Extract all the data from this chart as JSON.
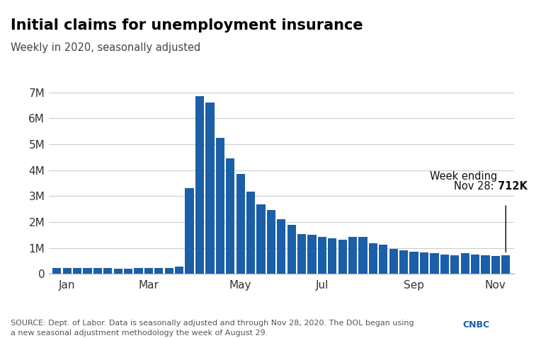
{
  "title": "Initial claims for unemployment insurance",
  "subtitle": "Weekly in 2020, seasonally adjusted",
  "source_text": "SOURCE: Dept. of Labor. Data is seasonally adjusted and through Nov 28, 2020. The DOL began using\na new seasonal adjustment methodology the week of August 29.",
  "annotation_line1": "Week ending",
  "annotation_line2": "Nov 28: ",
  "annotation_bold": "712K",
  "bar_color": "#1a5fa8",
  "background_color": "#ffffff",
  "header_color": "#0d2c6e",
  "ytick_labels": [
    "0",
    "1M",
    "2M",
    "3M",
    "4M",
    "5M",
    "6M",
    "7M"
  ],
  "ytick_values": [
    0,
    1000000,
    2000000,
    3000000,
    4000000,
    5000000,
    6000000,
    7000000
  ],
  "xtick_labels": [
    "Jan",
    "Mar",
    "May",
    "Jul",
    "Sep",
    "Nov"
  ],
  "ylim": [
    0,
    7500000
  ],
  "month_tick_positions": [
    1,
    9,
    18,
    26,
    35,
    43
  ],
  "bar_values": [
    220000,
    212000,
    218000,
    216000,
    211000,
    215000,
    208000,
    209000,
    211000,
    215000,
    212000,
    210000,
    282000,
    3307000,
    6867000,
    6615000,
    5237000,
    4442000,
    3846000,
    3176000,
    2687000,
    2451000,
    2112000,
    1877000,
    1543000,
    1517000,
    1425000,
    1370000,
    1310000,
    1435000,
    1422000,
    1186000,
    1111000,
    971000,
    893000,
    860000,
    833000,
    791000,
    751000,
    711000,
    787000,
    748000,
    709000,
    695000,
    712000
  ]
}
